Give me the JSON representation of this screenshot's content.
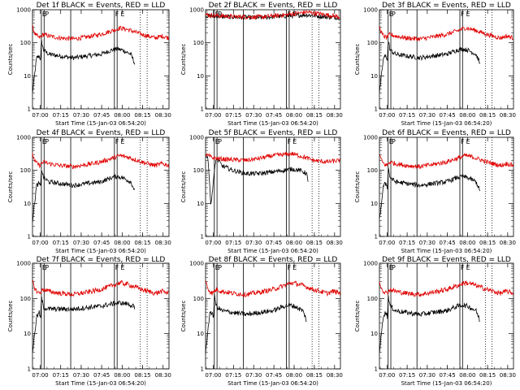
{
  "chart_data": [
    {
      "type": "line",
      "detector": "1f",
      "title": "Det 1f  BLACK = Events, RED = LLD",
      "ylabel": "Counts/sec",
      "xlabel": "Start Time (15-Jan-03 06:54:20)",
      "x_tick_labels": [
        "07:00",
        "07:15",
        "07:30",
        "07:45",
        "08:00",
        "08:15",
        "08:30"
      ],
      "y_tick_labels": [
        "1",
        "10",
        "100",
        "1000"
      ],
      "ylim": [
        1,
        1000
      ],
      "xlim_minutes": [
        0,
        100
      ],
      "markers": [
        {
          "label": "E",
          "minute": 6.5
        },
        {
          "label": "P",
          "minute": 8.5
        },
        {
          "label": "F",
          "minute": 60
        },
        {
          "label": "E",
          "minute": 64
        }
      ],
      "series": [
        {
          "name": "Events",
          "color": "#000000",
          "profile": "A"
        },
        {
          "name": "LLD",
          "color": "#e00000",
          "profile": "B"
        }
      ]
    },
    {
      "type": "line",
      "detector": "2f",
      "title": "Det 2f  BLACK = Events, RED = LLD",
      "ylabel": "Counts/sec",
      "xlabel": "Start Time (15-Jan-03 06:54:20)",
      "x_tick_labels": [
        "07:00",
        "07:15",
        "07:30",
        "07:45",
        "08:00",
        "08:15",
        "08:30"
      ],
      "y_tick_labels": [
        "1",
        "10",
        "100",
        "1000"
      ],
      "ylim": [
        1,
        1000
      ],
      "xlim_minutes": [
        0,
        100
      ],
      "markers": [
        {
          "label": "E",
          "minute": 6.5
        },
        {
          "label": "P",
          "minute": 8.5
        },
        {
          "label": "F",
          "minute": 60
        },
        {
          "label": "E",
          "minute": 64
        }
      ],
      "series": [
        {
          "name": "Events",
          "color": "#000000",
          "profile": "C"
        },
        {
          "name": "LLD",
          "color": "#e00000",
          "profile": "D"
        }
      ]
    },
    {
      "type": "line",
      "detector": "3f",
      "title": "Det 3f  BLACK = Events, RED = LLD",
      "ylabel": "Counts/sec",
      "xlabel": "Start Time (15-Jan-03 06:54:20)",
      "x_tick_labels": [
        "07:00",
        "07:15",
        "07:30",
        "07:45",
        "08:00",
        "08:15",
        "08:30"
      ],
      "y_tick_labels": [
        "1",
        "10",
        "100",
        "1000"
      ],
      "ylim": [
        1,
        1000
      ],
      "xlim_minutes": [
        0,
        100
      ],
      "markers": [
        {
          "label": "E",
          "minute": 6.5
        },
        {
          "label": "P",
          "minute": 8.5
        },
        {
          "label": "F",
          "minute": 60
        },
        {
          "label": "E",
          "minute": 64
        }
      ],
      "series": [
        {
          "name": "Events",
          "color": "#000000",
          "profile": "A"
        },
        {
          "name": "LLD",
          "color": "#e00000",
          "profile": "B"
        }
      ]
    },
    {
      "type": "line",
      "detector": "4f",
      "title": "Det 4f  BLACK = Events, RED = LLD",
      "ylabel": "Counts/sec",
      "xlabel": "Start Time (15-Jan-03 06:54:20)",
      "x_tick_labels": [
        "07:00",
        "07:15",
        "07:30",
        "07:45",
        "08:00",
        "08:15",
        "08:30"
      ],
      "y_tick_labels": [
        "1",
        "10",
        "100",
        "1000"
      ],
      "ylim": [
        1,
        1000
      ],
      "xlim_minutes": [
        0,
        100
      ],
      "markers": [
        {
          "label": "E",
          "minute": 6.5
        },
        {
          "label": "P",
          "minute": 8.5
        },
        {
          "label": "F",
          "minute": 60
        },
        {
          "label": "E",
          "minute": 64
        }
      ],
      "series": [
        {
          "name": "Events",
          "color": "#000000",
          "profile": "A"
        },
        {
          "name": "LLD",
          "color": "#e00000",
          "profile": "B"
        }
      ]
    },
    {
      "type": "line",
      "detector": "5f",
      "title": "Det 5f  BLACK = Events, RED = LLD",
      "ylabel": "Counts/sec",
      "xlabel": "Start Time (15-Jan-03 06:54:20)",
      "x_tick_labels": [
        "07:00",
        "07:15",
        "07:30",
        "07:45",
        "08:00",
        "08:15",
        "08:30"
      ],
      "y_tick_labels": [
        "1",
        "10",
        "100",
        "1000"
      ],
      "ylim": [
        1,
        1000
      ],
      "xlim_minutes": [
        0,
        100
      ],
      "markers": [
        {
          "label": "E",
          "minute": 6.5
        },
        {
          "label": "P",
          "minute": 8.5
        },
        {
          "label": "F",
          "minute": 60
        },
        {
          "label": "E",
          "minute": 64
        }
      ],
      "series": [
        {
          "name": "Events",
          "color": "#000000",
          "profile": "E"
        },
        {
          "name": "LLD",
          "color": "#e00000",
          "profile": "F"
        }
      ]
    },
    {
      "type": "line",
      "detector": "6f",
      "title": "Det 6f  BLACK = Events, RED = LLD",
      "ylabel": "Counts/sec",
      "xlabel": "Start Time (15-Jan-03 06:54:20)",
      "x_tick_labels": [
        "07:00",
        "07:15",
        "07:30",
        "07:45",
        "08:00",
        "08:15",
        "08:30"
      ],
      "y_tick_labels": [
        "1",
        "10",
        "100",
        "1000"
      ],
      "ylim": [
        1,
        1000
      ],
      "xlim_minutes": [
        0,
        100
      ],
      "markers": [
        {
          "label": "E",
          "minute": 6.5
        },
        {
          "label": "P",
          "minute": 8.5
        },
        {
          "label": "F",
          "minute": 60
        },
        {
          "label": "E",
          "minute": 64
        }
      ],
      "series": [
        {
          "name": "Events",
          "color": "#000000",
          "profile": "A"
        },
        {
          "name": "LLD",
          "color": "#e00000",
          "profile": "B"
        }
      ]
    },
    {
      "type": "line",
      "detector": "7f",
      "title": "Det 7f  BLACK = Events, RED = LLD",
      "ylabel": "Counts/sec",
      "xlabel": "Start Time (15-Jan-03 06:54:20)",
      "x_tick_labels": [
        "07:00",
        "07:15",
        "07:30",
        "07:45",
        "08:00",
        "08:15",
        "08:30"
      ],
      "y_tick_labels": [
        "1",
        "10",
        "100",
        "1000"
      ],
      "ylim": [
        1,
        1000
      ],
      "xlim_minutes": [
        0,
        100
      ],
      "markers": [
        {
          "label": "E",
          "minute": 6.5
        },
        {
          "label": "P",
          "minute": 8.5
        },
        {
          "label": "F",
          "minute": 60
        },
        {
          "label": "E",
          "minute": 64
        }
      ],
      "series": [
        {
          "name": "Events",
          "color": "#000000",
          "profile": "G"
        },
        {
          "name": "LLD",
          "color": "#e00000",
          "profile": "B"
        }
      ]
    },
    {
      "type": "line",
      "detector": "8f",
      "title": "Det 8f  BLACK = Events, RED = LLD",
      "ylabel": "Counts/sec",
      "xlabel": "Start Time (15-Jan-03 06:54:20)",
      "x_tick_labels": [
        "07:00",
        "07:15",
        "07:30",
        "07:45",
        "08:00",
        "08:15",
        "08:30"
      ],
      "y_tick_labels": [
        "1",
        "10",
        "100",
        "1000"
      ],
      "ylim": [
        1,
        1000
      ],
      "xlim_minutes": [
        0,
        100
      ],
      "markers": [
        {
          "label": "E",
          "minute": 6.5
        },
        {
          "label": "P",
          "minute": 8.5
        },
        {
          "label": "F",
          "minute": 60
        },
        {
          "label": "E",
          "minute": 64
        }
      ],
      "series": [
        {
          "name": "Events",
          "color": "#000000",
          "profile": "A"
        },
        {
          "name": "LLD",
          "color": "#e00000",
          "profile": "B"
        }
      ]
    },
    {
      "type": "line",
      "detector": "9f",
      "title": "Det 9f  BLACK = Events, RED = LLD",
      "ylabel": "Counts/sec",
      "xlabel": "Start Time (15-Jan-03 06:54:20)",
      "x_tick_labels": [
        "07:00",
        "07:15",
        "07:30",
        "07:45",
        "08:00",
        "08:15",
        "08:30"
      ],
      "y_tick_labels": [
        "1",
        "10",
        "100",
        "1000"
      ],
      "ylim": [
        1,
        1000
      ],
      "xlim_minutes": [
        0,
        100
      ],
      "markers": [
        {
          "label": "E",
          "minute": 6.5
        },
        {
          "label": "P",
          "minute": 8.5
        },
        {
          "label": "F",
          "minute": 60
        },
        {
          "label": "E",
          "minute": 64
        }
      ],
      "series": [
        {
          "name": "Events",
          "color": "#000000",
          "profile": "A"
        },
        {
          "name": "LLD",
          "color": "#e00000",
          "profile": "B"
        }
      ]
    }
  ],
  "profiles": {
    "A": [
      [
        0,
        3
      ],
      [
        3,
        35
      ],
      [
        5,
        40
      ],
      [
        6,
        30
      ],
      [
        6.5,
        120
      ],
      [
        8,
        60
      ],
      [
        12,
        45
      ],
      [
        20,
        40
      ],
      [
        30,
        35
      ],
      [
        40,
        40
      ],
      [
        50,
        45
      ],
      [
        58,
        60
      ],
      [
        62,
        65
      ],
      [
        66,
        60
      ],
      [
        72,
        45
      ],
      [
        74,
        30
      ],
      [
        75,
        22
      ]
    ],
    "B": [
      [
        0,
        300
      ],
      [
        2,
        180
      ],
      [
        5,
        140
      ],
      [
        8,
        180
      ],
      [
        12,
        160
      ],
      [
        20,
        140
      ],
      [
        30,
        130
      ],
      [
        40,
        150
      ],
      [
        50,
        180
      ],
      [
        58,
        230
      ],
      [
        64,
        280
      ],
      [
        70,
        250
      ],
      [
        80,
        180
      ],
      [
        90,
        140
      ],
      [
        95,
        160
      ],
      [
        100,
        140
      ]
    ],
    "C": [
      [
        0,
        650
      ],
      [
        20,
        600
      ],
      [
        40,
        580
      ],
      [
        60,
        650
      ],
      [
        75,
        700
      ],
      [
        90,
        600
      ],
      [
        100,
        580
      ]
    ],
    "D": [
      [
        0,
        700
      ],
      [
        20,
        620
      ],
      [
        40,
        600
      ],
      [
        60,
        700
      ],
      [
        75,
        850
      ],
      [
        90,
        700
      ],
      [
        100,
        600
      ]
    ],
    "E": [
      [
        0,
        300
      ],
      [
        2,
        200
      ],
      [
        4,
        8
      ],
      [
        6,
        60
      ],
      [
        8,
        250
      ],
      [
        12,
        140
      ],
      [
        20,
        100
      ],
      [
        30,
        80
      ],
      [
        40,
        80
      ],
      [
        50,
        90
      ],
      [
        58,
        100
      ],
      [
        64,
        110
      ],
      [
        70,
        100
      ],
      [
        75,
        80
      ],
      [
        76,
        40
      ]
    ],
    "F": [
      [
        0,
        300
      ],
      [
        5,
        240
      ],
      [
        12,
        220
      ],
      [
        20,
        210
      ],
      [
        30,
        200
      ],
      [
        40,
        230
      ],
      [
        50,
        280
      ],
      [
        58,
        300
      ],
      [
        64,
        320
      ],
      [
        72,
        260
      ],
      [
        80,
        200
      ],
      [
        90,
        180
      ],
      [
        100,
        200
      ]
    ],
    "G": [
      [
        0,
        3
      ],
      [
        3,
        30
      ],
      [
        5,
        40
      ],
      [
        6,
        25
      ],
      [
        6.5,
        110
      ],
      [
        8,
        55
      ],
      [
        12,
        50
      ],
      [
        20,
        50
      ],
      [
        30,
        50
      ],
      [
        40,
        55
      ],
      [
        50,
        60
      ],
      [
        58,
        70
      ],
      [
        64,
        75
      ],
      [
        70,
        70
      ],
      [
        74,
        60
      ],
      [
        75,
        45
      ]
    ]
  }
}
